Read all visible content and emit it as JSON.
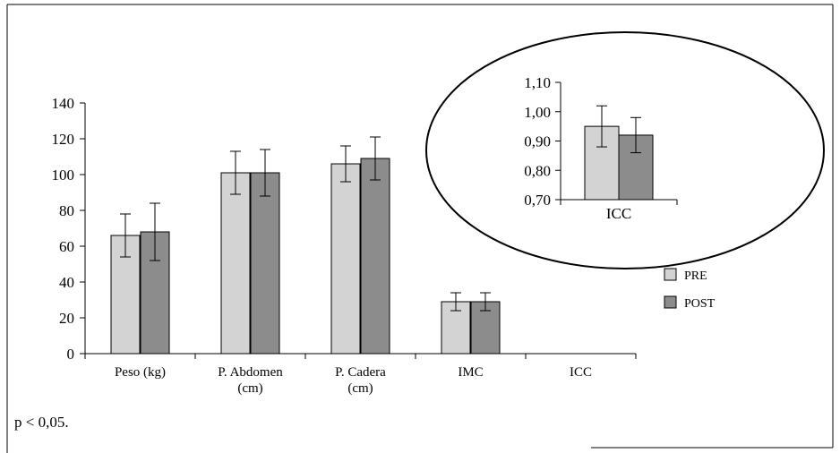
{
  "chart_data": [
    {
      "type": "bar",
      "categories": [
        [
          "Peso (kg)"
        ],
        [
          "P. Abdomen",
          "(cm)"
        ],
        [
          "P. Cadera",
          "(cm)"
        ],
        [
          "IMC"
        ],
        [
          "ICC"
        ]
      ],
      "series": [
        {
          "name": "PRE",
          "color": "#d3d3d3",
          "values": [
            66,
            101,
            106,
            29,
            null
          ],
          "error": [
            12,
            12,
            10,
            5,
            null
          ]
        },
        {
          "name": "POST",
          "color": "#8c8c8c",
          "values": [
            68,
            101,
            109,
            29,
            null
          ],
          "error": [
            16,
            13,
            12,
            5,
            null
          ]
        }
      ],
      "ylim": [
        0,
        140
      ],
      "yticks": [
        0,
        20,
        40,
        60,
        80,
        100,
        120,
        140
      ],
      "grid": false,
      "legend": "right"
    },
    {
      "type": "bar",
      "categories": [
        [
          "ICC"
        ]
      ],
      "series": [
        {
          "name": "PRE",
          "color": "#d3d3d3",
          "values": [
            0.95
          ],
          "error": [
            0.07
          ]
        },
        {
          "name": "POST",
          "color": "#8c8c8c",
          "values": [
            0.92
          ],
          "error": [
            0.06
          ]
        }
      ],
      "ylim": [
        0.7,
        1.1
      ],
      "yticks": [
        "0,70",
        "0,80",
        "0,90",
        "1,00",
        "1,10"
      ],
      "yticks_values": [
        0.7,
        0.8,
        0.9,
        1.0,
        1.1
      ],
      "grid": false
    }
  ],
  "legend": {
    "items": [
      {
        "label": "PRE",
        "color": "#d3d3d3"
      },
      {
        "label": "POST",
        "color": "#8c8c8c"
      }
    ]
  },
  "footnote": "p < 0,05."
}
